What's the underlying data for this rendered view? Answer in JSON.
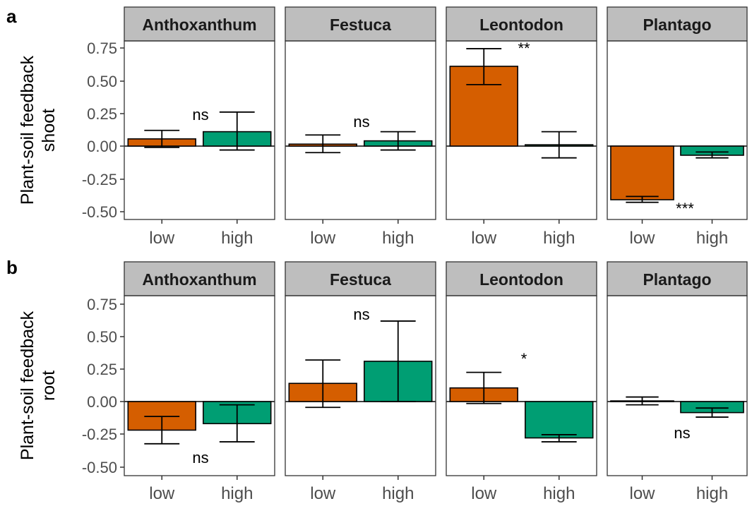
{
  "colors": {
    "low": "#d55e00",
    "high": "#009e73",
    "strip": "#bebebe"
  },
  "chart_data": [
    {
      "panel_label": "a",
      "type": "bar",
      "ylabel": [
        "Plant-soil feedback",
        "shoot"
      ],
      "ylim": [
        -0.55,
        0.8
      ],
      "yticks": [
        "0.75",
        "0.50",
        "0.25",
        "0.00",
        "-0.25",
        "-0.50"
      ],
      "categories": [
        "low",
        "high"
      ],
      "facets": [
        {
          "title": "Anthoxanthum",
          "annotation": "ns",
          "bars": [
            {
              "category": "low",
              "value": 0.055,
              "err_low": -0.01,
              "err_high": 0.12
            },
            {
              "category": "high",
              "value": 0.11,
              "err_low": -0.03,
              "err_high": 0.26
            }
          ]
        },
        {
          "title": "Festuca",
          "annotation": "ns",
          "bars": [
            {
              "category": "low",
              "value": 0.015,
              "err_low": -0.05,
              "err_high": 0.085
            },
            {
              "category": "high",
              "value": 0.04,
              "err_low": -0.03,
              "err_high": 0.11
            }
          ]
        },
        {
          "title": "Leontodon",
          "annotation": "**",
          "bars": [
            {
              "category": "low",
              "value": 0.61,
              "err_low": 0.47,
              "err_high": 0.745
            },
            {
              "category": "high",
              "value": 0.01,
              "err_low": -0.09,
              "err_high": 0.11
            }
          ]
        },
        {
          "title": "Plantago",
          "annotation": "***",
          "bars": [
            {
              "category": "low",
              "value": -0.41,
              "err_low": -0.43,
              "err_high": -0.385
            },
            {
              "category": "high",
              "value": -0.07,
              "err_low": -0.09,
              "err_high": -0.045
            }
          ]
        }
      ]
    },
    {
      "panel_label": "b",
      "type": "bar",
      "ylabel": [
        "Plant-soil feedback",
        "root"
      ],
      "ylim": [
        -0.55,
        0.8
      ],
      "yticks": [
        "0.75",
        "0.50",
        "0.25",
        "0.00",
        "-0.25",
        "-0.50"
      ],
      "categories": [
        "low",
        "high"
      ],
      "facets": [
        {
          "title": "Anthoxanthum",
          "annotation": "ns",
          "bars": [
            {
              "category": "low",
              "value": -0.22,
              "err_low": -0.325,
              "err_high": -0.115
            },
            {
              "category": "high",
              "value": -0.17,
              "err_low": -0.31,
              "err_high": -0.025
            }
          ]
        },
        {
          "title": "Festuca",
          "annotation": "ns",
          "bars": [
            {
              "category": "low",
              "value": 0.14,
              "err_low": -0.045,
              "err_high": 0.32
            },
            {
              "category": "high",
              "value": 0.31,
              "err_low": 0.0,
              "err_high": 0.62
            }
          ]
        },
        {
          "title": "Leontodon",
          "annotation": "*",
          "bars": [
            {
              "category": "low",
              "value": 0.105,
              "err_low": -0.015,
              "err_high": 0.225
            },
            {
              "category": "high",
              "value": -0.28,
              "err_low": -0.31,
              "err_high": -0.255
            }
          ]
        },
        {
          "title": "Plantago",
          "annotation": "ns",
          "bars": [
            {
              "category": "low",
              "value": 0.005,
              "err_low": -0.025,
              "err_high": 0.035
            },
            {
              "category": "high",
              "value": -0.085,
              "err_low": -0.12,
              "err_high": -0.05
            }
          ]
        }
      ]
    }
  ]
}
